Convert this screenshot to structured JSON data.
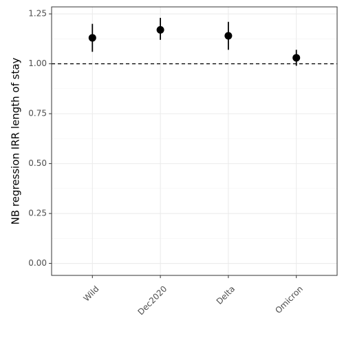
{
  "chart_data": {
    "type": "pointrange",
    "y_label": "NB regression IRR length of stay",
    "categories": [
      "Wild",
      "Dec2020",
      "Delta",
      "Omicron"
    ],
    "values": [
      1.13,
      1.17,
      1.14,
      1.03
    ],
    "lower": [
      1.06,
      1.12,
      1.07,
      0.99
    ],
    "upper": [
      1.2,
      1.23,
      1.21,
      1.07
    ],
    "color": "#000000",
    "hline": 1,
    "ylim": [
      -0.06,
      1.285
    ],
    "yticks": [
      {
        "value": 0,
        "label": "0.00"
      },
      {
        "value": 0.25,
        "label": "0.25"
      },
      {
        "value": 0.5,
        "label": "0.50"
      },
      {
        "value": 0.75,
        "label": "0.75"
      },
      {
        "value": 1,
        "label": "1.00"
      },
      {
        "value": 1.25,
        "label": "1.25"
      }
    ],
    "grid": true
  }
}
